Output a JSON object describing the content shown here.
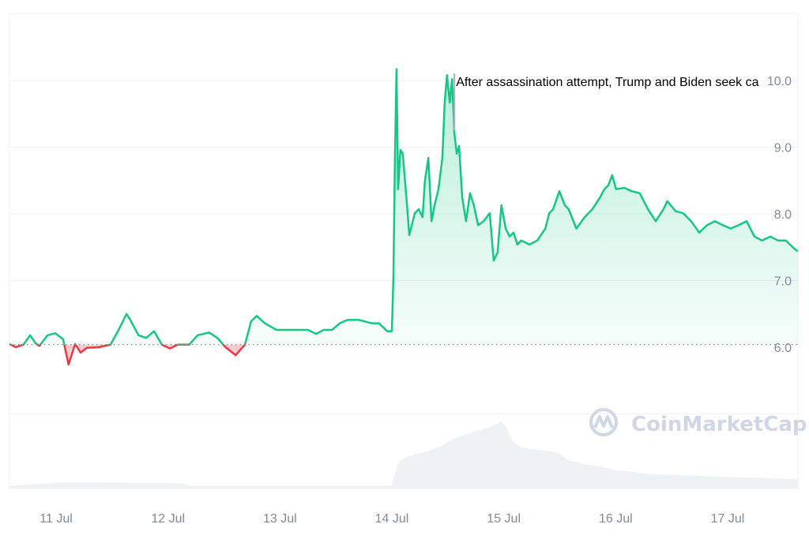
{
  "chart_data": {
    "type": "area",
    "title": "",
    "xlabel": "",
    "ylabel": "",
    "ylim": [
      4.9,
      10.9
    ],
    "y_ticks": [
      "6.0",
      "7.0",
      "8.0",
      "9.0",
      "10.0"
    ],
    "x_ticks": [
      "11 Jul",
      "12 Jul",
      "13 Jul",
      "14 Jul",
      "15 Jul",
      "16 Jul",
      "17 Jul"
    ],
    "grid": true,
    "baseline": 6.04,
    "colors": {
      "up": "#16c784",
      "down": "#ea3943",
      "volume": "#eff2f5",
      "grid": "#eff2f5",
      "tick": "#808a9d",
      "annotation_line": "#a6b0c3"
    },
    "annotation": {
      "time": "Jul 14 13:25",
      "text": "After assassination attempt, Trump and Biden seek ca"
    },
    "watermark": "CoinMarketCap",
    "price": [
      [
        "Jul 10 14:00",
        6.05
      ],
      [
        "Jul 10 15:20",
        6.0
      ],
      [
        "Jul 10 17:00",
        6.04
      ],
      [
        "Jul 10 18:25",
        6.18
      ],
      [
        "Jul 10 19:35",
        6.06
      ],
      [
        "Jul 10 20:25",
        6.02
      ],
      [
        "Jul 10 22:10",
        6.18
      ],
      [
        "Jul 10 23:50",
        6.21
      ],
      [
        "Jul 11 01:30",
        6.12
      ],
      [
        "Jul 11 02:40",
        5.74
      ],
      [
        "Jul 11 04:05",
        6.05
      ],
      [
        "Jul 11 05:15",
        5.92
      ],
      [
        "Jul 11 06:35",
        5.99
      ],
      [
        "Jul 11 09:10",
        6.0
      ],
      [
        "Jul 11 11:40",
        6.04
      ],
      [
        "Jul 11 13:25",
        6.26
      ],
      [
        "Jul 11 15:05",
        6.5
      ],
      [
        "Jul 11 15:55",
        6.41
      ],
      [
        "Jul 11 17:40",
        6.18
      ],
      [
        "Jul 11 19:20",
        6.14
      ],
      [
        "Jul 11 21:00",
        6.24
      ],
      [
        "Jul 11 22:40",
        6.04
      ],
      [
        "Jul 12 00:25",
        5.98
      ],
      [
        "Jul 12 02:05",
        6.04
      ],
      [
        "Jul 12 04:35",
        6.04
      ],
      [
        "Jul 12 06:20",
        6.18
      ],
      [
        "Jul 12 08:50",
        6.22
      ],
      [
        "Jul 12 10:35",
        6.14
      ],
      [
        "Jul 12 12:20",
        6.0
      ],
      [
        "Jul 12 14:30",
        5.88
      ],
      [
        "Jul 12 16:30",
        6.04
      ],
      [
        "Jul 12 17:50",
        6.39
      ],
      [
        "Jul 12 19:00",
        6.47
      ],
      [
        "Jul 12 20:45",
        6.36
      ],
      [
        "Jul 12 23:15",
        6.26
      ],
      [
        "Jul 13 02:40",
        6.26
      ],
      [
        "Jul 13 06:00",
        6.26
      ],
      [
        "Jul 13 07:45",
        6.2
      ],
      [
        "Jul 13 09:25",
        6.26
      ],
      [
        "Jul 13 11:10",
        6.26
      ],
      [
        "Jul 13 12:50",
        6.36
      ],
      [
        "Jul 13 14:30",
        6.41
      ],
      [
        "Jul 13 17:00",
        6.41
      ],
      [
        "Jul 13 19:35",
        6.36
      ],
      [
        "Jul 13 21:15",
        6.36
      ],
      [
        "Jul 13 23:00",
        6.24
      ],
      [
        "Jul 14 00:00",
        6.24
      ],
      [
        "Jul 14 00:20",
        7.07
      ],
      [
        "Jul 14 00:40",
        8.84
      ],
      [
        "Jul 14 01:00",
        10.17
      ],
      [
        "Jul 14 01:20",
        8.37
      ],
      [
        "Jul 14 01:50",
        8.96
      ],
      [
        "Jul 14 02:20",
        8.9
      ],
      [
        "Jul 14 03:15",
        8.13
      ],
      [
        "Jul 14 03:45",
        7.68
      ],
      [
        "Jul 14 04:55",
        8.01
      ],
      [
        "Jul 14 05:45",
        8.07
      ],
      [
        "Jul 14 06:35",
        7.95
      ],
      [
        "Jul 14 07:05",
        8.49
      ],
      [
        "Jul 14 07:50",
        8.84
      ],
      [
        "Jul 14 08:30",
        7.89
      ],
      [
        "Jul 14 09:10",
        8.13
      ],
      [
        "Jul 14 10:00",
        8.37
      ],
      [
        "Jul 14 10:50",
        8.84
      ],
      [
        "Jul 14 11:20",
        9.67
      ],
      [
        "Jul 14 11:50",
        10.08
      ],
      [
        "Jul 14 12:25",
        9.67
      ],
      [
        "Jul 14 12:55",
        10.02
      ],
      [
        "Jul 14 13:25",
        9.2
      ],
      [
        "Jul 14 13:55",
        8.9
      ],
      [
        "Jul 14 14:25",
        9.02
      ],
      [
        "Jul 14 15:05",
        8.25
      ],
      [
        "Jul 14 15:55",
        7.89
      ],
      [
        "Jul 14 16:45",
        8.31
      ],
      [
        "Jul 14 17:35",
        8.13
      ],
      [
        "Jul 14 18:30",
        7.83
      ],
      [
        "Jul 14 19:40",
        7.89
      ],
      [
        "Jul 14 21:00",
        8.01
      ],
      [
        "Jul 14 21:50",
        7.3
      ],
      [
        "Jul 14 22:40",
        7.42
      ],
      [
        "Jul 14 23:30",
        8.13
      ],
      [
        "Jul 15 00:25",
        7.78
      ],
      [
        "Jul 15 01:15",
        7.66
      ],
      [
        "Jul 15 02:05",
        7.72
      ],
      [
        "Jul 15 02:55",
        7.54
      ],
      [
        "Jul 15 03:45",
        7.6
      ],
      [
        "Jul 15 05:30",
        7.54
      ],
      [
        "Jul 15 07:10",
        7.6
      ],
      [
        "Jul 15 08:55",
        7.78
      ],
      [
        "Jul 15 09:45",
        8.01
      ],
      [
        "Jul 15 10:35",
        8.07
      ],
      [
        "Jul 15 11:55",
        8.34
      ],
      [
        "Jul 15 13:05",
        8.13
      ],
      [
        "Jul 15 13:55",
        8.07
      ],
      [
        "Jul 15 15:35",
        7.78
      ],
      [
        "Jul 15 17:20",
        7.95
      ],
      [
        "Jul 15 19:00",
        8.07
      ],
      [
        "Jul 15 20:40",
        8.25
      ],
      [
        "Jul 15 21:35",
        8.37
      ],
      [
        "Jul 15 22:25",
        8.43
      ],
      [
        "Jul 15 23:15",
        8.58
      ],
      [
        "Jul 16 00:05",
        8.37
      ],
      [
        "Jul 16 01:50",
        8.39
      ],
      [
        "Jul 16 03:30",
        8.34
      ],
      [
        "Jul 16 05:10",
        8.31
      ],
      [
        "Jul 16 06:55",
        8.07
      ],
      [
        "Jul 16 08:35",
        7.89
      ],
      [
        "Jul 16 10:15",
        8.07
      ],
      [
        "Jul 16 11:05",
        8.19
      ],
      [
        "Jul 16 12:50",
        8.04
      ],
      [
        "Jul 16 14:30",
        8.01
      ],
      [
        "Jul 16 16:10",
        7.89
      ],
      [
        "Jul 16 17:55",
        7.72
      ],
      [
        "Jul 16 19:35",
        7.83
      ],
      [
        "Jul 16 21:15",
        7.89
      ],
      [
        "Jul 16 23:00",
        7.83
      ],
      [
        "Jul 17 00:40",
        7.78
      ],
      [
        "Jul 17 02:20",
        7.83
      ],
      [
        "Jul 17 04:05",
        7.89
      ],
      [
        "Jul 17 05:45",
        7.66
      ],
      [
        "Jul 17 07:25",
        7.6
      ],
      [
        "Jul 17 09:10",
        7.66
      ],
      [
        "Jul 17 10:50",
        7.6
      ],
      [
        "Jul 17 12:30",
        7.6
      ],
      [
        "Jul 17 14:15",
        7.48
      ],
      [
        "Jul 17 15:05",
        7.44
      ]
    ],
    "volume_relative": [
      [
        "Jul 10 14:00",
        0.04
      ],
      [
        "Jul 11 01:30",
        0.09
      ],
      [
        "Jul 12 02:55",
        0.08
      ],
      [
        "Jul 12 04:35",
        0.04
      ],
      [
        "Jul 13 23:50",
        0.04
      ],
      [
        "Jul 14 00:40",
        0.22
      ],
      [
        "Jul 14 01:30",
        0.4
      ],
      [
        "Jul 14 03:15",
        0.48
      ],
      [
        "Jul 14 07:25",
        0.55
      ],
      [
        "Jul 14 10:50",
        0.64
      ],
      [
        "Jul 14 12:30",
        0.72
      ],
      [
        "Jul 14 17:35",
        0.85
      ],
      [
        "Jul 14 21:00",
        0.91
      ],
      [
        "Jul 14 23:30",
        1.0
      ],
      [
        "Jul 15 00:25",
        0.93
      ],
      [
        "Jul 15 02:05",
        0.69
      ],
      [
        "Jul 15 03:45",
        0.61
      ],
      [
        "Jul 15 07:10",
        0.58
      ],
      [
        "Jul 15 10:35",
        0.55
      ],
      [
        "Jul 15 12:15",
        0.51
      ],
      [
        "Jul 15 13:55",
        0.42
      ],
      [
        "Jul 15 17:20",
        0.36
      ],
      [
        "Jul 15 20:40",
        0.33
      ],
      [
        "Jul 16 00:05",
        0.27
      ],
      [
        "Jul 16 03:30",
        0.25
      ],
      [
        "Jul 16 06:55",
        0.21
      ],
      [
        "Jul 16 13:40",
        0.2
      ],
      [
        "Jul 16 20:25",
        0.18
      ],
      [
        "Jul 17 06:35",
        0.16
      ],
      [
        "Jul 17 15:05",
        0.14
      ]
    ]
  }
}
